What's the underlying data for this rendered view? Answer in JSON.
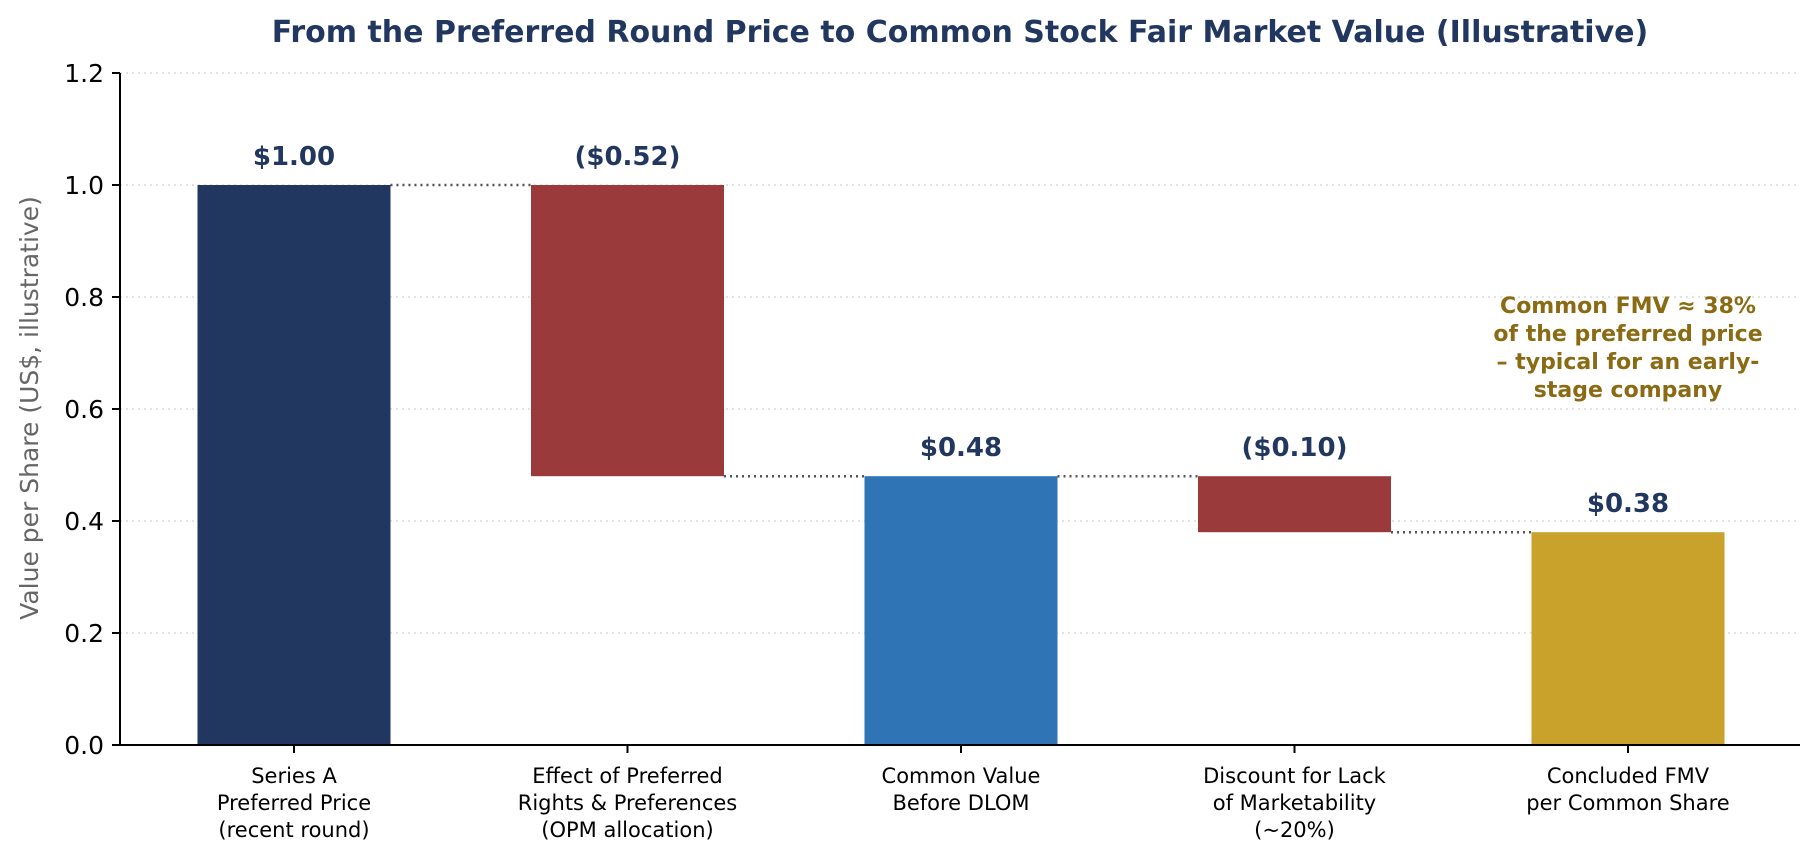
{
  "chart_data": {
    "type": "waterfall",
    "title": "From the Preferred Round Price to Common Stock Fair Market Value (Illustrative)",
    "ylabel": "Value per Share (US$, illustrative)",
    "xlabel": "",
    "ylim": [
      0,
      1.2
    ],
    "yticks": [
      "0.0",
      "0.2",
      "0.4",
      "0.6",
      "0.8",
      "1.0",
      "1.2"
    ],
    "ytick_values": [
      0,
      0.2,
      0.4,
      0.6,
      0.8,
      1.0,
      1.2
    ],
    "grid": "horizontal dotted",
    "categories": [
      [
        "Series A",
        "Preferred Price",
        "(recent round)"
      ],
      [
        "Effect of Preferred",
        "Rights & Preferences",
        "(OPM allocation)"
      ],
      [
        "Common Value",
        "Before DLOM"
      ],
      [
        "Discount for Lack",
        "of Marketability",
        "(~20%)"
      ],
      [
        "Concluded FMV",
        "per Common Share"
      ]
    ],
    "bars": [
      {
        "kind": "total",
        "bottom": 0,
        "top": 1.0,
        "value": 1.0,
        "label": "$1.00",
        "color": "#21375f"
      },
      {
        "kind": "decrease",
        "bottom": 0.48,
        "top": 1.0,
        "value": -0.52,
        "label": "($0.52)",
        "color": "#9b3a3b"
      },
      {
        "kind": "subtotal",
        "bottom": 0,
        "top": 0.48,
        "value": 0.48,
        "label": "$0.48",
        "color": "#2f74b5"
      },
      {
        "kind": "decrease",
        "bottom": 0.38,
        "top": 0.48,
        "value": -0.1,
        "label": "($0.10)",
        "color": "#9b3a3b"
      },
      {
        "kind": "total",
        "bottom": 0,
        "top": 0.38,
        "value": 0.38,
        "label": "$0.38",
        "color": "#c9a22b"
      }
    ],
    "connectors": [
      1.0,
      0.48,
      0.48,
      0.38
    ],
    "annotation": {
      "lines": [
        "Common FMV ≈ 38%",
        "of the preferred price",
        "– typical for an early-",
        "stage company"
      ],
      "color": "#8a6a12"
    },
    "colors": {
      "title": "#21375f",
      "data_label": "#21375f",
      "axis_label": "#666666",
      "grid": "#d9d9d9",
      "connector": "#555555"
    }
  }
}
